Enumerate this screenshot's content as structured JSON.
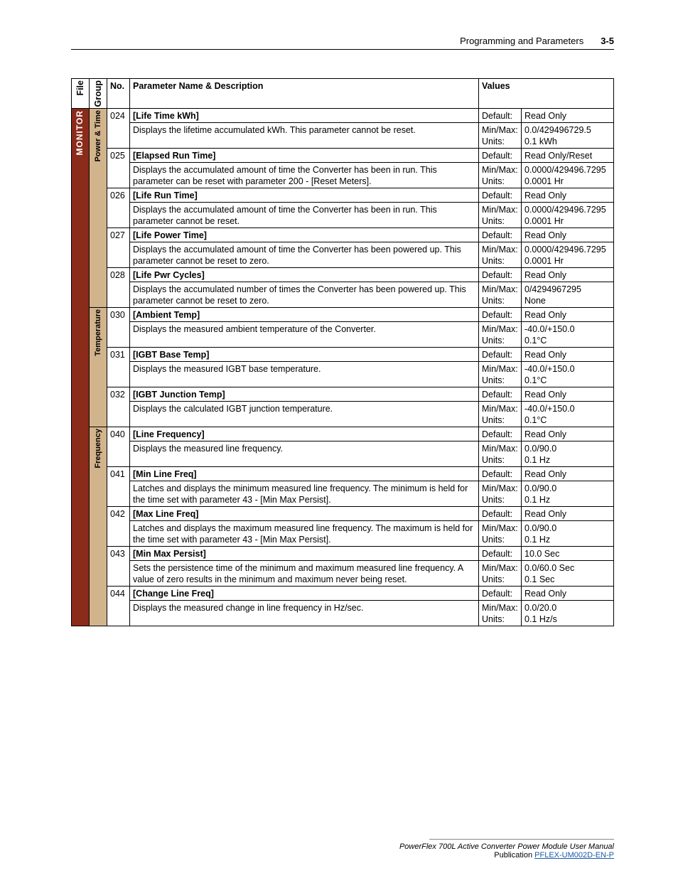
{
  "header": {
    "chapter": "Programming and Parameters",
    "page": "3-5"
  },
  "columns": {
    "file": "File",
    "group": "Group",
    "no": "No.",
    "name": "Parameter Name & Description",
    "values": "Values"
  },
  "file_label": "MONITOR",
  "val_labels": {
    "default": "Default:",
    "minmax": "Min/Max:",
    "units": "Units:"
  },
  "groups": [
    {
      "label": "Power & Time",
      "params": [
        {
          "no": "024",
          "name": "[Life Time kWh]",
          "desc": "Displays the lifetime accumulated kWh. This parameter cannot be reset.",
          "default": "Read Only",
          "minmax": "0.0/429496729.5",
          "units": "0.1 kWh"
        },
        {
          "no": "025",
          "name": "[Elapsed Run Time]",
          "desc": "Displays the accumulated amount of time the Converter has been in run. This parameter can be reset with parameter 200 - [Reset Meters].",
          "default": "Read Only/Reset",
          "minmax": "0.0000/429496.7295",
          "units": "0.0001 Hr"
        },
        {
          "no": "026",
          "name": "[Life Run Time]",
          "desc": "Displays the accumulated amount of time the Converter has been in run. This parameter cannot be reset.",
          "default": "Read Only",
          "minmax": "0.0000/429496.7295",
          "units": "0.0001 Hr"
        },
        {
          "no": "027",
          "name": "[Life Power Time]",
          "desc": "Displays the accumulated amount of time the Converter has been powered up. This parameter cannot be reset to zero.",
          "default": "Read Only",
          "minmax": "0.0000/429496.7295",
          "units": "0.0001 Hr"
        },
        {
          "no": "028",
          "name": "[Life Pwr Cycles]",
          "desc": "Displays the accumulated number of times the Converter has been powered up. This parameter cannot be reset to zero.",
          "default": "Read Only",
          "minmax": "0/4294967295",
          "units": "None"
        }
      ]
    },
    {
      "label": "Temperature",
      "params": [
        {
          "no": "030",
          "name": "[Ambient Temp]",
          "desc": "Displays the measured ambient temperature of the Converter.",
          "default": "Read Only",
          "minmax": "-40.0/+150.0",
          "units": "0.1°C"
        },
        {
          "no": "031",
          "name": "[IGBT Base Temp]",
          "desc": "Displays the measured IGBT base temperature.",
          "default": "Read Only",
          "minmax": "-40.0/+150.0",
          "units": "0.1°C"
        },
        {
          "no": "032",
          "name": "[IGBT Junction Temp]",
          "desc": "Displays the calculated IGBT junction temperature.",
          "default": "Read Only",
          "minmax": "-40.0/+150.0",
          "units": "0.1°C"
        }
      ]
    },
    {
      "label": "Frequency",
      "params": [
        {
          "no": "040",
          "name": "[Line Frequency]",
          "desc": "Displays the measured line frequency.",
          "default": "Read Only",
          "minmax": "0.0/90.0",
          "units": "0.1 Hz"
        },
        {
          "no": "041",
          "name": "[Min Line Freq]",
          "desc": "Latches and displays the minimum measured line frequency. The minimum is held for the time set with parameter 43 - [Min Max Persist].",
          "default": "Read Only",
          "minmax": "0.0/90.0",
          "units": "0.1 Hz"
        },
        {
          "no": "042",
          "name": "[Max Line Freq]",
          "desc": "Latches and displays the maximum measured line frequency. The maximum is held for the time set with parameter 43 - [Min Max Persist].",
          "default": "Read Only",
          "minmax": "0.0/90.0",
          "units": "0.1 Hz"
        },
        {
          "no": "043",
          "name": "[Min Max Persist]",
          "desc": "Sets the persistence time of the minimum and maximum measured line frequency. A value of zero results in the minimum and maximum never being reset.",
          "default": "10.0 Sec",
          "minmax": "0.0/60.0 Sec",
          "units": "0.1 Sec"
        },
        {
          "no": "044",
          "name": "[Change Line Freq]",
          "desc": "Displays the measured change in line frequency in Hz/sec.",
          "default": "Read Only",
          "minmax": "0.0/20.0",
          "units": "0.1 Hz/s"
        }
      ]
    }
  ],
  "footer": {
    "manual": "PowerFlex 700L Active Converter Power Module User Manual",
    "pub_label": "Publication ",
    "pub_link": "PFLEX-UM002D-EN-P"
  }
}
